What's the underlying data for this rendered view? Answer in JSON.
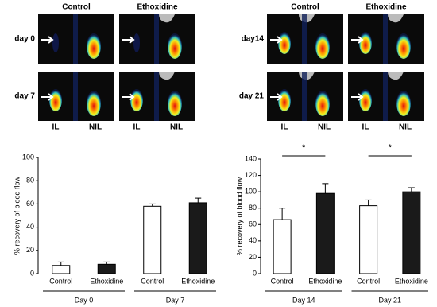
{
  "image_panels": [
    {
      "column_labels": [
        "Control",
        "Ethoxidine"
      ],
      "row_labels": [
        "day 0",
        "day 7"
      ],
      "axis_labels": [
        "IL",
        "NIL"
      ]
    },
    {
      "column_labels": [
        "Control",
        "Ethoxidine"
      ],
      "row_labels": [
        "day14",
        "day 21"
      ],
      "axis_labels": [
        "IL",
        "NIL"
      ]
    }
  ],
  "chart_data": [
    {
      "type": "bar",
      "y_label": "% recovery of blood flow",
      "categories": [
        "Day 0",
        "Day 7"
      ],
      "series": [
        {
          "name": "Control",
          "color": "#ffffff",
          "values": [
            7,
            58
          ],
          "errors": [
            3,
            2
          ]
        },
        {
          "name": "Ethoxidine",
          "color": "#1a1a1a",
          "values": [
            8,
            61
          ],
          "errors": [
            2,
            4
          ]
        }
      ],
      "ylim": [
        0,
        100
      ],
      "yticks": [
        0,
        20,
        40,
        60,
        80,
        100
      ]
    },
    {
      "type": "bar",
      "y_label": "% recovery of blood flow",
      "categories": [
        "Day 14",
        "Day 21"
      ],
      "series": [
        {
          "name": "Control",
          "color": "#ffffff",
          "values": [
            66,
            83
          ],
          "errors": [
            14,
            7
          ]
        },
        {
          "name": "Ethoxidine",
          "color": "#1a1a1a",
          "values": [
            98,
            100
          ],
          "errors": [
            12,
            5
          ]
        }
      ],
      "ylim": [
        0,
        140
      ],
      "yticks": [
        0,
        20,
        40,
        60,
        80,
        100,
        120,
        140
      ],
      "annotations": [
        "*",
        "*"
      ]
    }
  ]
}
